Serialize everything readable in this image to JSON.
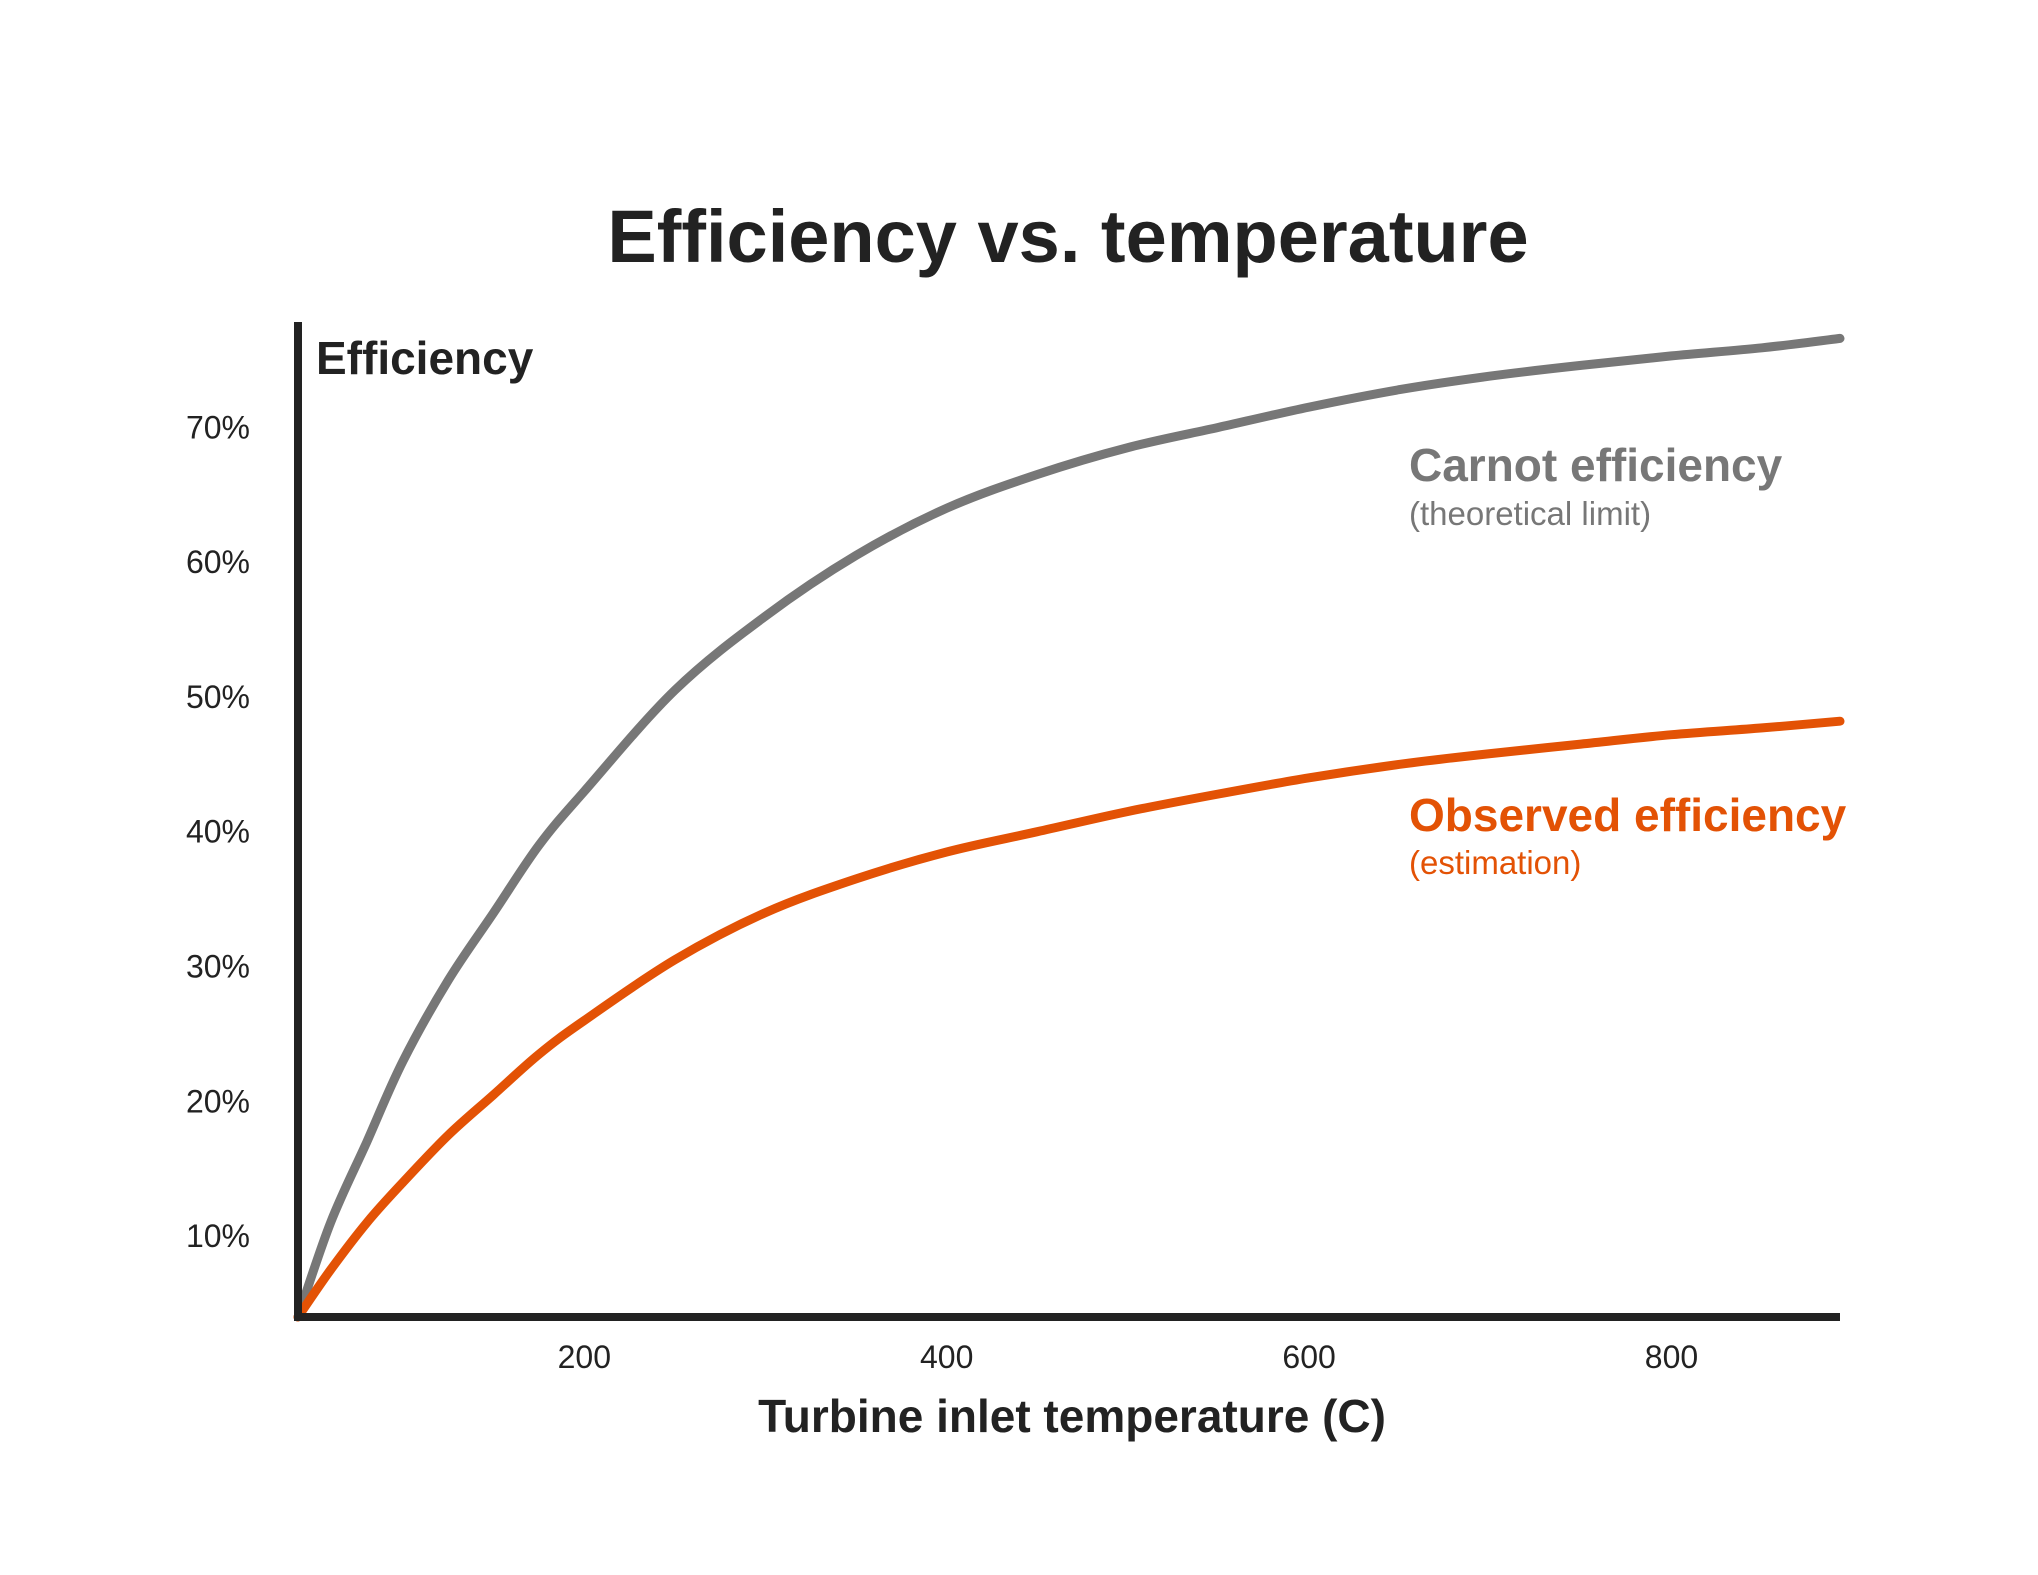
{
  "chart_data": {
    "type": "line",
    "title": "Efficiency vs. temperature",
    "xlabel": "Turbine inlet temperature (C)",
    "ylabel": "Efficiency",
    "xlim": [
      42,
      893
    ],
    "ylim": [
      0.04,
      0.77
    ],
    "x_ticks": [
      {
        "value": 200,
        "label": "200"
      },
      {
        "value": 400,
        "label": "400"
      },
      {
        "value": 600,
        "label": "600"
      },
      {
        "value": 800,
        "label": "800"
      }
    ],
    "y_ticks": [
      {
        "value": 0.1,
        "label": "10%"
      },
      {
        "value": 0.2,
        "label": "20%"
      },
      {
        "value": 0.3,
        "label": "30%"
      },
      {
        "value": 0.4,
        "label": "40%"
      },
      {
        "value": 0.5,
        "label": "50%"
      },
      {
        "value": 0.6,
        "label": "60%"
      },
      {
        "value": 0.7,
        "label": "70%"
      }
    ],
    "grid": false,
    "legend": "inline-right",
    "series": [
      {
        "name": "Carnot efficiency",
        "sublabel": "(theoretical limit)",
        "color": "#777777",
        "x": [
          42,
          60,
          80,
          100,
          125,
          150,
          175,
          200,
          250,
          300,
          350,
          400,
          450,
          500,
          550,
          600,
          650,
          700,
          750,
          800,
          850,
          893
        ],
        "y": [
          0.04,
          0.11,
          0.17,
          0.23,
          0.29,
          0.34,
          0.39,
          0.43,
          0.505,
          0.56,
          0.605,
          0.64,
          0.665,
          0.685,
          0.7,
          0.715,
          0.728,
          0.738,
          0.746,
          0.753,
          0.759,
          0.766
        ]
      },
      {
        "name": "Observed efficiency",
        "sublabel": "(estimation)",
        "color": "#E35205",
        "x": [
          42,
          60,
          80,
          100,
          125,
          150,
          175,
          200,
          250,
          300,
          350,
          400,
          450,
          500,
          550,
          600,
          650,
          700,
          750,
          800,
          850,
          893
        ],
        "y": [
          0.04,
          0.075,
          0.11,
          0.14,
          0.175,
          0.205,
          0.235,
          0.26,
          0.305,
          0.34,
          0.365,
          0.385,
          0.4,
          0.415,
          0.428,
          0.44,
          0.45,
          0.458,
          0.465,
          0.472,
          0.477,
          0.482
        ]
      }
    ]
  },
  "colors": {
    "axis": "#222222",
    "text": "#222222"
  }
}
